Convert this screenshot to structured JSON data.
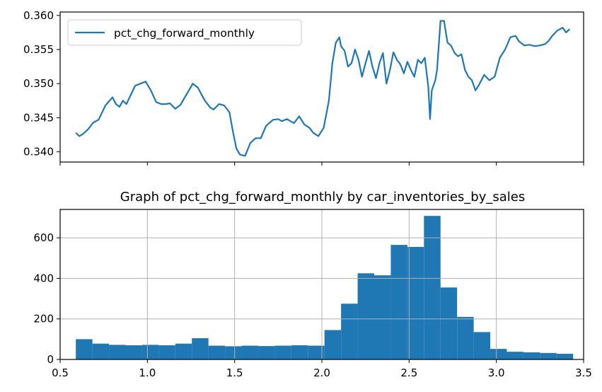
{
  "chart_data": [
    {
      "type": "line",
      "title": "",
      "xlabel": "",
      "ylabel": "",
      "legend": {
        "position": "upper-left",
        "entries": [
          "pct_chg_forward_monthly"
        ]
      },
      "x_range": [
        0.5,
        3.5
      ],
      "ylim": [
        0.3385,
        0.3605
      ],
      "y_ticks": [
        0.34,
        0.345,
        0.35,
        0.355,
        0.36
      ],
      "y_tick_labels": [
        "0.340",
        "0.345",
        "0.350",
        "0.355",
        "0.360"
      ],
      "x_ticks": [
        0.5,
        1.0,
        1.5,
        2.0,
        2.5,
        3.0,
        3.5
      ],
      "x_tick_labels_shown": false,
      "grid": false,
      "series": [
        {
          "name": "pct_chg_forward_monthly",
          "color": "#1f77b4",
          "x": [
            0.59,
            0.61,
            0.63,
            0.66,
            0.69,
            0.72,
            0.76,
            0.8,
            0.82,
            0.84,
            0.86,
            0.88,
            0.9,
            0.93,
            0.96,
            0.99,
            1.02,
            1.05,
            1.08,
            1.1,
            1.13,
            1.16,
            1.19,
            1.21,
            1.24,
            1.26,
            1.29,
            1.31,
            1.33,
            1.36,
            1.38,
            1.41,
            1.44,
            1.47,
            1.49,
            1.51,
            1.53,
            1.56,
            1.59,
            1.62,
            1.65,
            1.68,
            1.72,
            1.75,
            1.77,
            1.8,
            1.84,
            1.87,
            1.9,
            1.93,
            1.95,
            1.98,
            2.01,
            2.04,
            2.06,
            2.08,
            2.1,
            2.11,
            2.13,
            2.15,
            2.17,
            2.19,
            2.21,
            2.23,
            2.25,
            2.27,
            2.29,
            2.31,
            2.33,
            2.35,
            2.37,
            2.39,
            2.41,
            2.43,
            2.45,
            2.47,
            2.49,
            2.51,
            2.53,
            2.55,
            2.57,
            2.59,
            2.61,
            2.62,
            2.63,
            2.65,
            2.66,
            2.68,
            2.7,
            2.72,
            2.74,
            2.76,
            2.78,
            2.8,
            2.82,
            2.84,
            2.86,
            2.88,
            2.9,
            2.93,
            2.96,
            2.99,
            3.02,
            3.05,
            3.08,
            3.11,
            3.13,
            3.16,
            3.19,
            3.22,
            3.25,
            3.28,
            3.3,
            3.32,
            3.35,
            3.38,
            3.4,
            3.42
          ],
          "y": [
            0.3428,
            0.3423,
            0.3426,
            0.3433,
            0.3443,
            0.3447,
            0.3468,
            0.348,
            0.347,
            0.3466,
            0.3475,
            0.347,
            0.3481,
            0.3497,
            0.35,
            0.3503,
            0.349,
            0.3473,
            0.347,
            0.347,
            0.3471,
            0.3463,
            0.3469,
            0.3478,
            0.3491,
            0.35,
            0.3494,
            0.3484,
            0.3475,
            0.3465,
            0.3462,
            0.347,
            0.3468,
            0.3458,
            0.343,
            0.3405,
            0.3396,
            0.3394,
            0.3413,
            0.342,
            0.342,
            0.3438,
            0.3447,
            0.3448,
            0.3445,
            0.3448,
            0.3442,
            0.3452,
            0.344,
            0.3435,
            0.3428,
            0.3423,
            0.3435,
            0.3475,
            0.353,
            0.356,
            0.3568,
            0.3555,
            0.3548,
            0.3525,
            0.353,
            0.355,
            0.3535,
            0.351,
            0.353,
            0.3548,
            0.3525,
            0.3508,
            0.353,
            0.3545,
            0.35,
            0.352,
            0.3546,
            0.3535,
            0.3528,
            0.3515,
            0.3532,
            0.352,
            0.351,
            0.3535,
            0.353,
            0.3538,
            0.3495,
            0.3448,
            0.349,
            0.3505,
            0.352,
            0.3592,
            0.3592,
            0.356,
            0.3556,
            0.3545,
            0.354,
            0.3543,
            0.352,
            0.351,
            0.3505,
            0.349,
            0.3498,
            0.3513,
            0.3505,
            0.351,
            0.3538,
            0.355,
            0.3568,
            0.357,
            0.3562,
            0.3556,
            0.3557,
            0.3555,
            0.3556,
            0.3558,
            0.3563,
            0.357,
            0.3578,
            0.3582,
            0.3575,
            0.358
          ]
        }
      ]
    },
    {
      "type": "bar",
      "title": "Graph of pct_chg_forward_monthly by car_inventories_by_sales",
      "xlabel": "",
      "ylabel": "",
      "x_range": [
        0.5,
        3.5
      ],
      "ylim": [
        0,
        740
      ],
      "x_ticks": [
        0.5,
        1.0,
        1.5,
        2.0,
        2.5,
        3.0,
        3.5
      ],
      "x_tick_labels": [
        "0.5",
        "1.0",
        "1.5",
        "2.0",
        "2.5",
        "3.0",
        "3.5"
      ],
      "y_ticks": [
        0,
        200,
        400,
        600
      ],
      "y_tick_labels": [
        "0",
        "200",
        "400",
        "600"
      ],
      "grid": true,
      "bar_color": "#1f77b4",
      "bin_edges": [
        0.59,
        0.685,
        0.78,
        0.875,
        0.97,
        1.065,
        1.16,
        1.255,
        1.35,
        1.445,
        1.54,
        1.635,
        1.73,
        1.825,
        1.92,
        2.015,
        2.11,
        2.205,
        2.3,
        2.395,
        2.49,
        2.585,
        2.68,
        2.775,
        2.87,
        2.965,
        3.06,
        3.155,
        3.25,
        3.345,
        3.44
      ],
      "values": [
        100,
        78,
        72,
        70,
        72,
        70,
        78,
        105,
        68,
        65,
        68,
        66,
        68,
        70,
        68,
        145,
        275,
        425,
        415,
        565,
        555,
        708,
        355,
        210,
        135,
        52,
        38,
        35,
        32,
        28
      ]
    }
  ]
}
